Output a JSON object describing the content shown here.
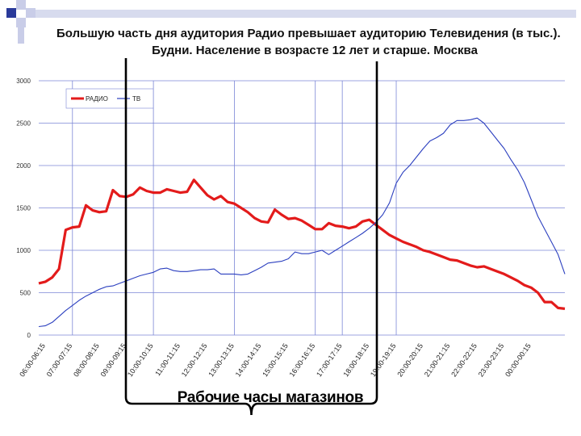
{
  "header": {
    "title_line1": "Большую часть дня аудитория Радио превышает аудиторию Телевидения (в тыс.).",
    "title_line2": "Будни. Население в возрасте 12 лет и старше. Москва"
  },
  "annotation": {
    "bracket_label": "Рабочие часы магазинов"
  },
  "colors": {
    "radio": "#e31b1b",
    "tv": "#2b3fbf",
    "grid": "#7b86d6",
    "deco_dark": "#2a3a9a",
    "deco_light": "#c9cde8"
  },
  "chart_data": {
    "type": "line",
    "title": "Большую часть дня аудитория Радио превышает аудиторию Телевидения (в тыс.). Будни. Население в возрасте 12 лет и старше. Москва",
    "xlabel": "",
    "ylabel": "",
    "ylim": [
      0,
      3000
    ],
    "yticks": [
      "0",
      "500",
      "1000",
      "1500",
      "2000",
      "2500",
      "3000"
    ],
    "xtick_labels": [
      "06:00-06:15",
      "07:00-07:15",
      "08:00-08:15",
      "09:00-09:15",
      "10:00-10:15",
      "11:00-11:15",
      "12:00-12:15",
      "13:00-13:15",
      "14:00-14:15",
      "15:00-15:15",
      "16:00-16:15",
      "17:00-17:15",
      "18:00-18:15",
      "19:00-19:15",
      "20:00-20:15",
      "21:00-21:15",
      "22:00-22:15",
      "23:00-23:15",
      "00:00-00:15"
    ],
    "grid": true,
    "legend_position": "top-left",
    "series": [
      {
        "name": "РАДИО",
        "values": [
          610,
          630,
          680,
          780,
          1240,
          1270,
          1280,
          1530,
          1470,
          1450,
          1460,
          1710,
          1640,
          1630,
          1660,
          1740,
          1700,
          1680,
          1680,
          1720,
          1700,
          1680,
          1690,
          1830,
          1740,
          1650,
          1600,
          1640,
          1570,
          1550,
          1500,
          1450,
          1380,
          1340,
          1330,
          1480,
          1420,
          1370,
          1380,
          1350,
          1300,
          1250,
          1250,
          1320,
          1290,
          1280,
          1260,
          1280,
          1340,
          1360,
          1300,
          1240,
          1180,
          1140,
          1100,
          1070,
          1040,
          1000,
          980,
          950,
          920,
          890,
          880,
          850,
          820,
          800,
          810,
          780,
          750,
          720,
          680,
          640,
          590,
          560,
          500,
          390,
          390,
          320,
          310
        ]
      },
      {
        "name": "ТВ",
        "values": [
          100,
          110,
          150,
          220,
          290,
          350,
          410,
          460,
          500,
          540,
          570,
          580,
          610,
          640,
          670,
          700,
          720,
          740,
          780,
          790,
          760,
          750,
          750,
          760,
          770,
          770,
          780,
          720,
          720,
          720,
          710,
          720,
          760,
          800,
          850,
          860,
          870,
          900,
          980,
          960,
          960,
          980,
          1000,
          950,
          1000,
          1050,
          1100,
          1150,
          1200,
          1260,
          1330,
          1420,
          1560,
          1790,
          1920,
          2000,
          2100,
          2200,
          2290,
          2330,
          2380,
          2480,
          2530,
          2530,
          2540,
          2560,
          2500,
          2400,
          2300,
          2200,
          2070,
          1950,
          1800,
          1600,
          1400,
          1250,
          1100,
          950,
          720
        ]
      }
    ]
  }
}
